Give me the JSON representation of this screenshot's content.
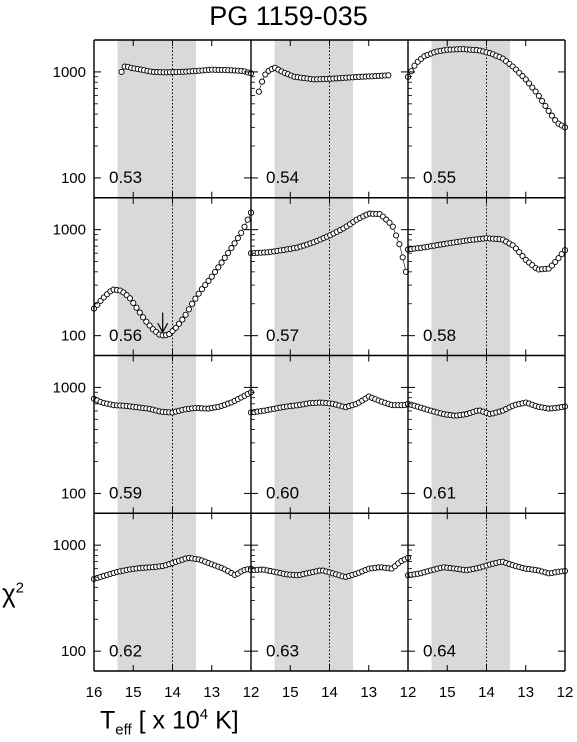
{
  "chart_data": {
    "type": "scatter",
    "title": "PG 1159-035",
    "ylabel": "χ",
    "ylabel_sup": "2",
    "xlabel": {
      "main": "T",
      "sub": "eff",
      "mid": " [ x 10",
      "sup": "4",
      "end": " K]"
    },
    "xlim": [
      16,
      12
    ],
    "xticks": [
      "16",
      "15",
      "14",
      "13",
      "12"
    ],
    "ylim": [
      65,
      2000
    ],
    "ylog": true,
    "yticks": [
      {
        "value": 100,
        "label": "100"
      },
      {
        "value": 1000,
        "label": "1000"
      }
    ],
    "shaded_band": [
      15.4,
      13.4
    ],
    "reference_line_x": 14.0,
    "shade_color": "#d9d9d9",
    "grid": false,
    "arrow": {
      "panel": "0.56",
      "x": 14.25,
      "from_y": 165,
      "to_y": 108
    },
    "panels": [
      {
        "label": "0.53",
        "x": [
          15.3,
          15.2,
          15.1,
          14.8,
          14.5,
          14.2,
          13.8,
          13.4,
          13.0,
          12.6,
          12.2,
          12.0
        ],
        "y": [
          1000,
          1150,
          1100,
          1050,
          1000,
          990,
          1000,
          1020,
          1050,
          1040,
          1020,
          970
        ]
      },
      {
        "label": "0.54",
        "x": [
          15.8,
          15.7,
          15.6,
          15.4,
          15.2,
          14.9,
          14.4,
          14.0,
          13.6,
          13.2,
          12.9,
          12.7,
          12.5
        ],
        "y": [
          650,
          850,
          1000,
          1100,
          1000,
          900,
          850,
          860,
          880,
          900,
          910,
          920,
          930
        ]
      },
      {
        "label": "0.55",
        "x": [
          16.0,
          15.8,
          15.6,
          15.3,
          15.0,
          14.6,
          14.2,
          13.9,
          13.6,
          13.3,
          13.0,
          12.7,
          12.4,
          12.2,
          12.0
        ],
        "y": [
          900,
          1200,
          1400,
          1550,
          1620,
          1640,
          1600,
          1500,
          1350,
          1100,
          850,
          620,
          420,
          330,
          300
        ]
      },
      {
        "label": "0.56",
        "x": [
          16.0,
          15.8,
          15.6,
          15.5,
          15.3,
          15.1,
          14.9,
          14.7,
          14.5,
          14.3,
          14.1,
          13.9,
          13.7,
          13.5,
          13.3,
          13.0,
          12.7,
          12.4,
          12.2,
          12.0
        ],
        "y": [
          180,
          220,
          260,
          272,
          265,
          230,
          180,
          140,
          115,
          100,
          102,
          120,
          150,
          200,
          260,
          360,
          520,
          760,
          1000,
          1450
        ]
      },
      {
        "label": "0.57",
        "x": [
          16.0,
          15.6,
          15.2,
          14.8,
          14.4,
          14.0,
          13.6,
          13.3,
          13.0,
          12.7,
          12.4,
          12.2,
          12.05
        ],
        "y": [
          600,
          610,
          640,
          680,
          760,
          880,
          1050,
          1250,
          1420,
          1400,
          1100,
          700,
          400
        ]
      },
      {
        "label": "0.58",
        "x": [
          16.0,
          15.6,
          15.2,
          14.8,
          14.4,
          14.0,
          13.6,
          13.3,
          13.0,
          12.7,
          12.4,
          12.2,
          12.0
        ],
        "y": [
          650,
          680,
          720,
          760,
          800,
          830,
          810,
          700,
          520,
          420,
          430,
          520,
          640
        ]
      },
      {
        "label": "0.59",
        "x": [
          16.0,
          15.8,
          15.5,
          15.2,
          14.9,
          14.6,
          14.3,
          14.0,
          13.7,
          13.4,
          13.1,
          12.8,
          12.5,
          12.2,
          12.0
        ],
        "y": [
          780,
          720,
          680,
          670,
          650,
          630,
          590,
          580,
          620,
          640,
          630,
          660,
          720,
          820,
          900
        ]
      },
      {
        "label": "0.60",
        "x": [
          16.0,
          15.7,
          15.4,
          15.1,
          14.8,
          14.5,
          14.2,
          13.9,
          13.6,
          13.3,
          13.0,
          12.7,
          12.4,
          12.1,
          12.0
        ],
        "y": [
          580,
          600,
          630,
          660,
          680,
          710,
          720,
          700,
          650,
          700,
          820,
          740,
          680,
          680,
          690
        ]
      },
      {
        "label": "0.61",
        "x": [
          16.0,
          15.7,
          15.4,
          15.1,
          14.8,
          14.5,
          14.2,
          13.9,
          13.6,
          13.3,
          13.0,
          12.7,
          12.4,
          12.1,
          12.0
        ],
        "y": [
          700,
          650,
          600,
          560,
          540,
          560,
          610,
          560,
          600,
          680,
          720,
          660,
          630,
          650,
          660
        ]
      },
      {
        "label": "0.62",
        "x": [
          16.0,
          15.7,
          15.4,
          15.1,
          14.8,
          14.5,
          14.2,
          13.9,
          13.6,
          13.3,
          13.0,
          12.7,
          12.4,
          12.2,
          12.0
        ],
        "y": [
          480,
          520,
          560,
          590,
          610,
          620,
          640,
          700,
          760,
          730,
          660,
          600,
          520,
          580,
          600
        ]
      },
      {
        "label": "0.63",
        "x": [
          16.0,
          15.7,
          15.4,
          15.1,
          14.8,
          14.5,
          14.2,
          13.9,
          13.6,
          13.3,
          13.0,
          12.7,
          12.4,
          12.2,
          12.0
        ],
        "y": [
          580,
          590,
          560,
          530,
          520,
          550,
          580,
          540,
          500,
          540,
          600,
          620,
          600,
          700,
          760
        ]
      },
      {
        "label": "0.64",
        "x": [
          16.0,
          15.7,
          15.4,
          15.1,
          14.8,
          14.5,
          14.2,
          13.9,
          13.6,
          13.3,
          13.0,
          12.7,
          12.4,
          12.2,
          12.0
        ],
        "y": [
          520,
          540,
          580,
          620,
          600,
          580,
          610,
          660,
          700,
          640,
          600,
          580,
          540,
          560,
          570
        ]
      }
    ]
  }
}
